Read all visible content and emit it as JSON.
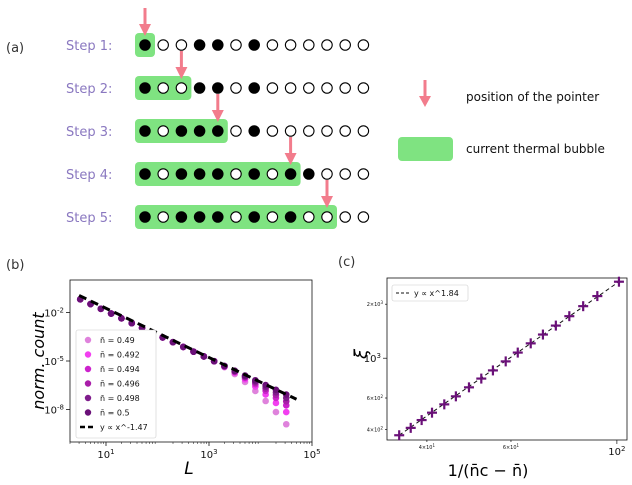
{
  "panel_a": {
    "label": "(a)",
    "pointer_legend": "position of the pointer",
    "bubble_legend": "current thermal bubble",
    "colors": {
      "pointer": "#f27c8c",
      "bubble": "#7fe381"
    },
    "steps": [
      {
        "label": "Step 1:",
        "sites": [
          1,
          0,
          0,
          1,
          1,
          0,
          1,
          0,
          0,
          0,
          0,
          0,
          0
        ],
        "pointer": 0,
        "bubble_end": 0
      },
      {
        "label": "Step 2:",
        "sites": [
          1,
          0,
          0,
          1,
          1,
          0,
          1,
          0,
          0,
          0,
          0,
          0,
          0
        ],
        "pointer": 2,
        "bubble_end": 2
      },
      {
        "label": "Step 3:",
        "sites": [
          1,
          0,
          1,
          1,
          1,
          0,
          1,
          0,
          0,
          0,
          0,
          0,
          0
        ],
        "pointer": 4,
        "bubble_end": 4
      },
      {
        "label": "Step 4:",
        "sites": [
          1,
          0,
          1,
          1,
          1,
          0,
          1,
          0,
          1,
          1,
          0,
          0,
          0
        ],
        "pointer": 8,
        "bubble_end": 8
      },
      {
        "label": "Step 5:",
        "sites": [
          1,
          0,
          1,
          1,
          1,
          0,
          1,
          0,
          1,
          0,
          0,
          0,
          0
        ],
        "pointer": 10,
        "bubble_end": 10
      }
    ]
  },
  "panel_b": {
    "label": "(b)",
    "chart_data": {
      "type": "scatter",
      "xlabel": "L",
      "ylabel": "norm. count",
      "xscale": "log",
      "yscale": "log",
      "xlim": [
        2,
        100000
      ],
      "ylim": [
        1e-10,
        1
      ],
      "xticks": [
        "10^1",
        "10^3",
        "10^5"
      ],
      "yticks": [
        "10^-2",
        "10^-5",
        "10^-8"
      ],
      "legend_position": "lower-left",
      "series": [
        {
          "name": "n̄ = 0.49",
          "color": "#df82dc",
          "exponent": -1.47,
          "tail_drop": 2.2
        },
        {
          "name": "n̄ = 0.492",
          "color": "#f23ff0",
          "exponent": -1.47,
          "tail_drop": 1.3
        },
        {
          "name": "n̄ = 0.494",
          "color": "#cc22cc",
          "exponent": -1.47,
          "tail_drop": 0.8
        },
        {
          "name": "n̄ = 0.496",
          "color": "#a91ea9",
          "exponent": -1.47,
          "tail_drop": 0.5
        },
        {
          "name": "n̄ = 0.498",
          "color": "#7f1c8c",
          "exponent": -1.47,
          "tail_drop": 0.25
        },
        {
          "name": "n̄ = 0.5",
          "color": "#6a1078",
          "exponent": -1.47,
          "tail_drop": 0.0
        }
      ],
      "fit": {
        "name": "y ∝ x^-1.47",
        "exponent": -1.47
      }
    }
  },
  "panel_c": {
    "label": "(c)",
    "chart_data": {
      "type": "scatter",
      "xlabel": "1/(n̄c − n̄)",
      "ylabel": "ξ",
      "xscale": "log",
      "yscale": "log",
      "xlim": [
        33,
        105
      ],
      "ylim": [
        350,
        2800
      ],
      "xticks": [
        "4×10^1",
        "6×10^1",
        "10^2"
      ],
      "yticks": [
        "4×10^2",
        "6×10^2",
        "10^3",
        "2×10^3"
      ],
      "legend_position": "top-left",
      "fit": {
        "name": "y ∝ x^1.84",
        "exponent": 1.84
      },
      "points_x": [
        35,
        37,
        39,
        41,
        43.5,
        46,
        49,
        52,
        55,
        58.5,
        62,
        66,
        70,
        74.5,
        79.5,
        85,
        91,
        101
      ],
      "points_y": [
        372,
        409,
        452,
        497,
        553,
        613,
        688,
        770,
        855,
        960,
        1075,
        1210,
        1355,
        1520,
        1715,
        1950,
        2220,
        2670
      ],
      "color": "#6a1078"
    }
  }
}
